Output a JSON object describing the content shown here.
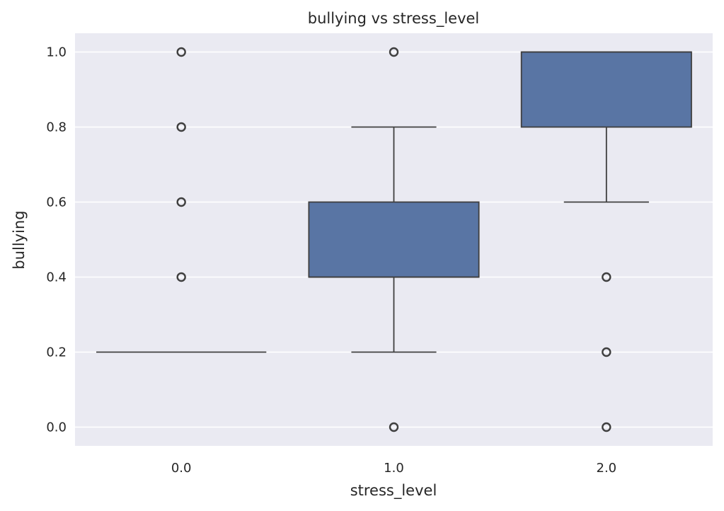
{
  "chart_data": {
    "type": "box",
    "title": "bullying vs stress_level",
    "xlabel": "stress_level",
    "ylabel": "bullying",
    "categories": [
      "0.0",
      "1.0",
      "2.0"
    ],
    "y_ticks": [
      "0.0",
      "0.2",
      "0.4",
      "0.6",
      "0.8",
      "1.0"
    ],
    "ylim": [
      -0.05,
      1.05
    ],
    "grid": true,
    "colors": {
      "background": "#EAEAF2",
      "box_fill": "#5975A4",
      "line": "#3F3F3F",
      "grid": "#FFFFFF"
    },
    "boxes": [
      {
        "category": "0.0",
        "q1": 0.2,
        "median": 0.2,
        "q3": 0.2,
        "whisker_low": 0.2,
        "whisker_high": 0.2,
        "outliers": [
          0.4,
          0.6,
          0.8,
          1.0
        ]
      },
      {
        "category": "1.0",
        "q1": 0.4,
        "median": 0.4,
        "q3": 0.6,
        "whisker_low": 0.2,
        "whisker_high": 0.8,
        "outliers": [
          0.0,
          1.0
        ]
      },
      {
        "category": "2.0",
        "q1": 0.8,
        "median": 1.0,
        "q3": 1.0,
        "whisker_low": 0.6,
        "whisker_high": 1.0,
        "outliers": [
          0.0,
          0.2,
          0.4
        ]
      }
    ]
  }
}
